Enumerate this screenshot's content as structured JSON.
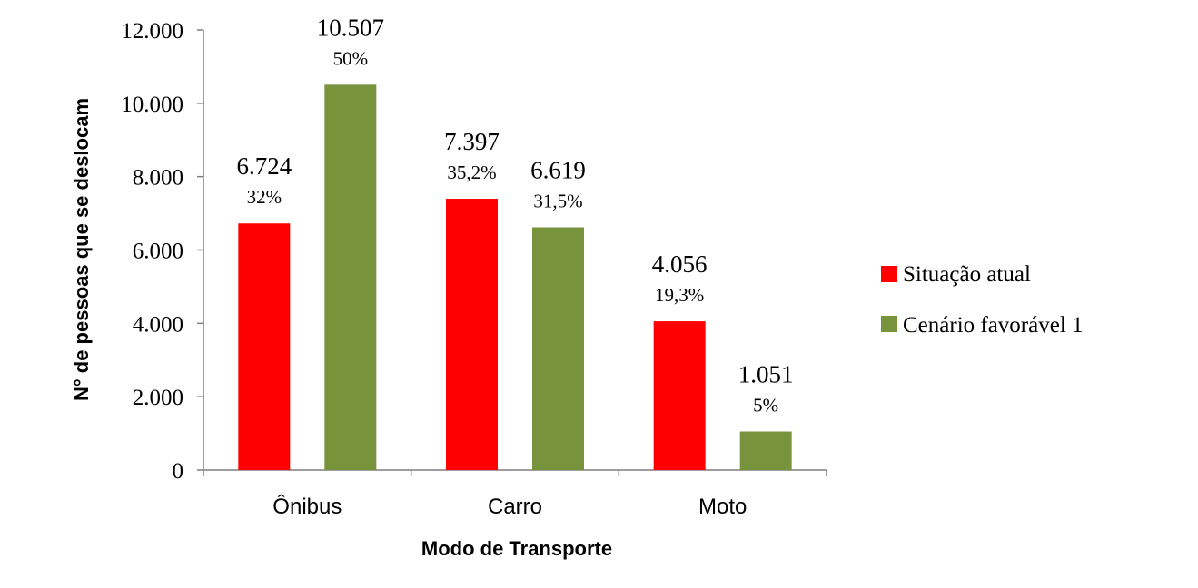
{
  "chart_data": {
    "type": "bar",
    "title": "",
    "xlabel": "Modo de Transporte",
    "ylabel": "N° de pessoas que se deslocam",
    "ylim": [
      0,
      12000
    ],
    "yticks": [
      "0",
      "2.000",
      "4.000",
      "6.000",
      "8.000",
      "10.000",
      "12.000"
    ],
    "ytick_values": [
      0,
      2000,
      4000,
      6000,
      8000,
      10000,
      12000
    ],
    "categories": [
      "Ônibus",
      "Carro",
      "Moto"
    ],
    "series": [
      {
        "name": "Situação atual",
        "color": "#ff0000",
        "values": [
          6724,
          7397,
          4056
        ],
        "value_labels": [
          "6.724",
          "7.397",
          "4.056"
        ],
        "percent_labels": [
          "32%",
          "35,2%",
          "19,3%"
        ]
      },
      {
        "name": "Cenário favorável 1",
        "color": "#77933c",
        "values": [
          10507,
          6619,
          1051
        ],
        "value_labels": [
          "10.507",
          "6.619",
          "1.051"
        ],
        "percent_labels": [
          "50%",
          "31,5%",
          "5%"
        ]
      }
    ],
    "grid": false,
    "legend_position": "right"
  }
}
